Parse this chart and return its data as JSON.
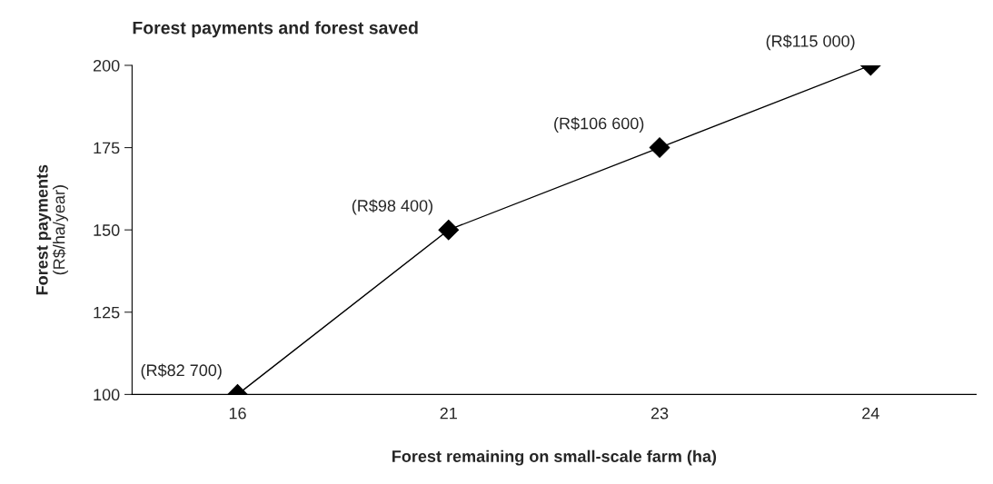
{
  "chart_data": {
    "type": "line",
    "title": "Forest payments and forest saved",
    "xlabel": "Forest remaining on small-scale farm (ha)",
    "ylabel": "Forest payments\n(R$/ha/year)",
    "categories": [
      "16",
      "21",
      "23",
      "24"
    ],
    "series": [
      {
        "color": "#000000",
        "values": [
          100,
          150,
          175,
          200
        ]
      }
    ],
    "ylim": [
      100,
      200
    ],
    "yticks": [
      100,
      125,
      150,
      175,
      200
    ],
    "marker": "diamond",
    "line_style": "solid",
    "grid": false,
    "annotations": [
      {
        "text": "(R$82 700)",
        "x": "16",
        "y": 100
      },
      {
        "text": "(R$98 400)",
        "x": "21",
        "y": 150
      },
      {
        "text": "(R$106 600)",
        "x": "23",
        "y": 175
      },
      {
        "text": "(R$115 000)",
        "x": "24",
        "y": 200
      }
    ]
  }
}
